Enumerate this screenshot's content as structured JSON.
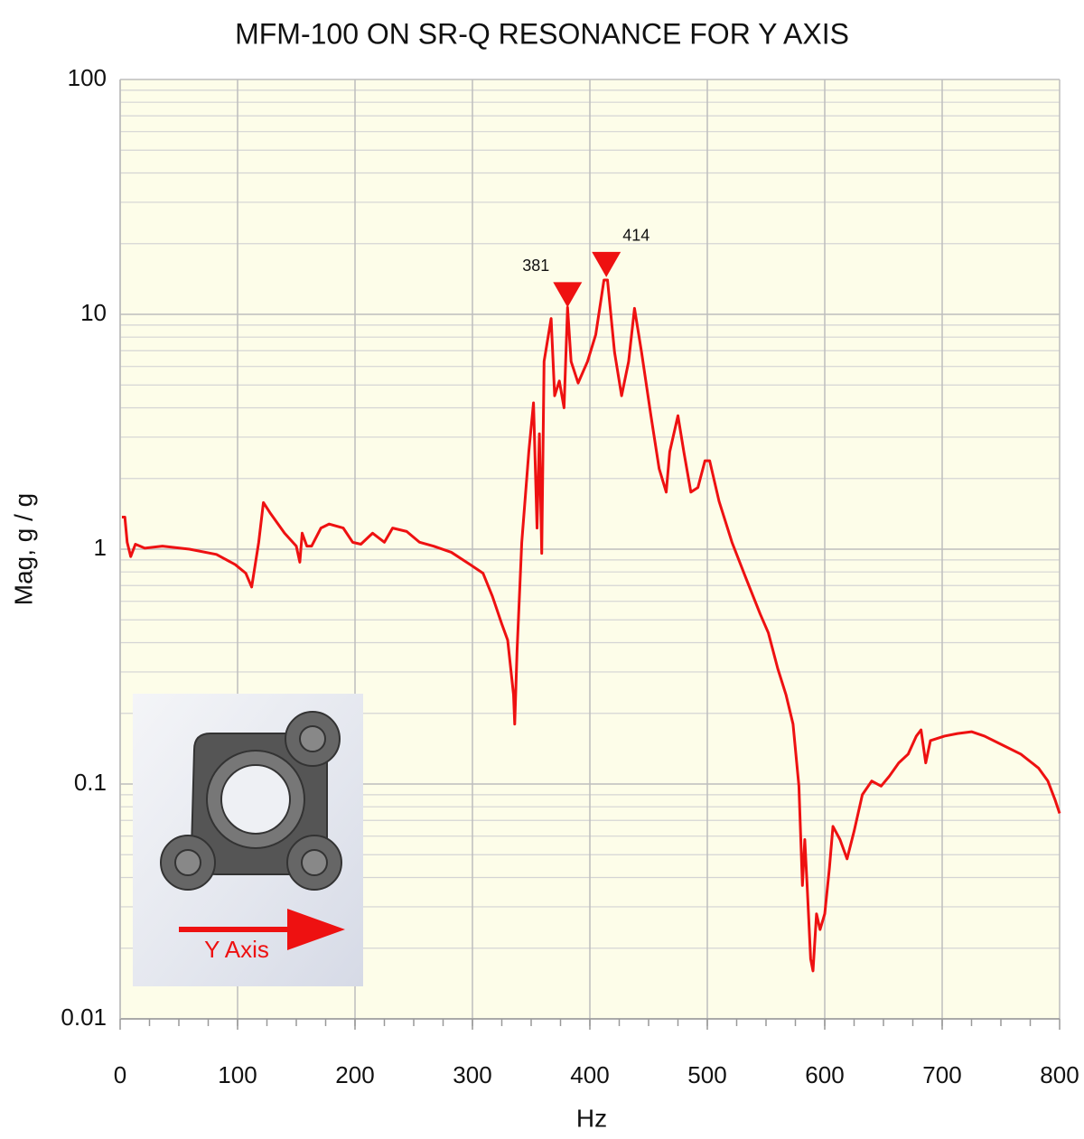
{
  "chart_data": {
    "type": "line",
    "title": "MFM-100 ON SR-Q RESONANCE FOR Y AXIS",
    "x_label": "Hz",
    "y_label": "Mag, g / g",
    "x": [
      1.5,
      4,
      6,
      9,
      13,
      21,
      36,
      59,
      82,
      98,
      107,
      112,
      118,
      122,
      128,
      140,
      150,
      153,
      155,
      159,
      163,
      171,
      178,
      190,
      198,
      205,
      215,
      225,
      232,
      244,
      255,
      267,
      282,
      298,
      309,
      317,
      325,
      330,
      335,
      336,
      338,
      342,
      348,
      352,
      355,
      357,
      359,
      361,
      367,
      370,
      374,
      378,
      381,
      384,
      390,
      398,
      405,
      412,
      415,
      421,
      427,
      433,
      438,
      444,
      452,
      459,
      465,
      468,
      475,
      480,
      486,
      492,
      498,
      502,
      510,
      521,
      533,
      545,
      552,
      560,
      567,
      573,
      578,
      581,
      583,
      585,
      588,
      590,
      593,
      596,
      600,
      604,
      607,
      613,
      619,
      625,
      632,
      640,
      648,
      655,
      663,
      671,
      678,
      682,
      686,
      690,
      702,
      713,
      725,
      736,
      752,
      767,
      782,
      790,
      796,
      800
    ],
    "values": [
      1.37,
      1.37,
      1.07,
      0.93,
      1.05,
      1.01,
      1.03,
      1.0,
      0.95,
      0.86,
      0.79,
      0.69,
      1.07,
      1.58,
      1.42,
      1.17,
      1.03,
      0.88,
      1.17,
      1.03,
      1.03,
      1.23,
      1.28,
      1.23,
      1.07,
      1.05,
      1.17,
      1.07,
      1.23,
      1.19,
      1.07,
      1.03,
      0.97,
      0.86,
      0.79,
      0.63,
      0.48,
      0.41,
      0.24,
      0.18,
      0.37,
      1.07,
      2.6,
      4.2,
      1.23,
      3.1,
      0.96,
      6.3,
      9.6,
      4.5,
      5.2,
      4.0,
      10.7,
      6.3,
      5.1,
      6.3,
      8.2,
      14.0,
      14.0,
      6.9,
      4.5,
      6.3,
      10.6,
      6.9,
      3.7,
      2.2,
      1.75,
      2.6,
      3.7,
      2.6,
      1.75,
      1.83,
      2.38,
      2.38,
      1.6,
      1.07,
      0.75,
      0.53,
      0.44,
      0.31,
      0.24,
      0.18,
      0.098,
      0.037,
      0.058,
      0.037,
      0.018,
      0.016,
      0.028,
      0.024,
      0.028,
      0.044,
      0.066,
      0.058,
      0.048,
      0.063,
      0.09,
      0.103,
      0.098,
      0.108,
      0.123,
      0.134,
      0.16,
      0.17,
      0.123,
      0.153,
      0.16,
      0.164,
      0.167,
      0.16,
      0.146,
      0.134,
      0.117,
      0.103,
      0.086,
      0.075
    ],
    "color": "#ee1111",
    "markers": {
      "x": [
        381,
        414
      ],
      "y": [
        10.7,
        14.4
      ],
      "color": "#ee1111"
    },
    "xlim": [
      0,
      800
    ],
    "xticks": [
      0,
      100,
      200,
      300,
      400,
      500,
      600,
      700,
      800
    ],
    "ylim": [
      0.01,
      100
    ],
    "yticks": [
      0.01,
      0.1,
      1,
      10,
      100
    ],
    "ylog": true,
    "grid": true,
    "minor_grid": true,
    "background": "#fdfde9"
  },
  "inset": {
    "label": "Y Axis"
  }
}
